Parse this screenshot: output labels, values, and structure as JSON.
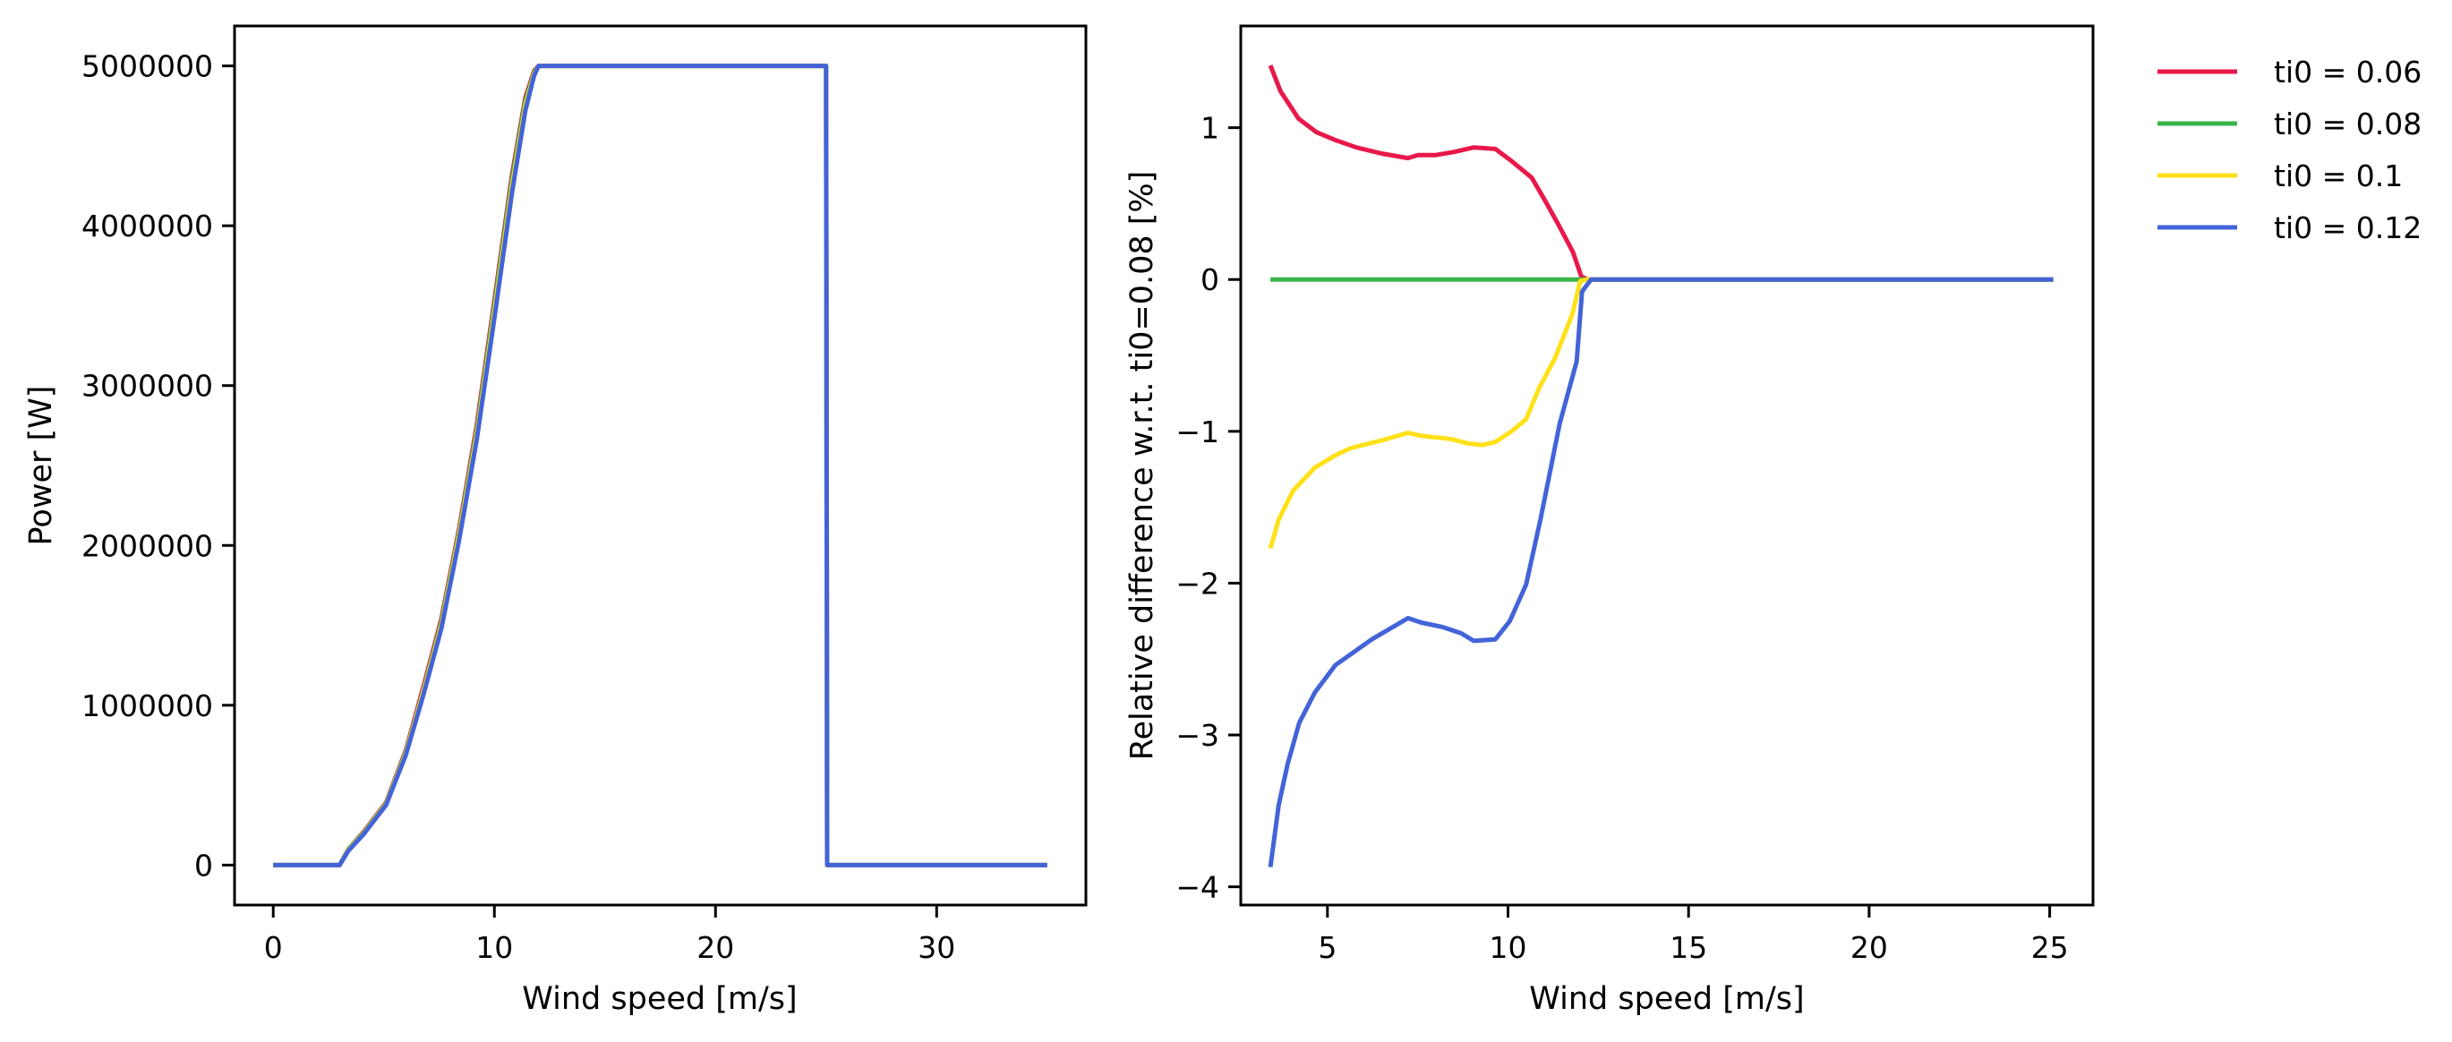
{
  "chart_data": [
    {
      "type": "line",
      "title": "",
      "xlabel": "Wind speed [m/s]",
      "ylabel": "Power [W]",
      "xlim": [
        -1.75,
        36.75
      ],
      "ylim": [
        -250000,
        5250000
      ],
      "xticks": [
        0,
        10,
        20,
        30
      ],
      "xtick_labels": [
        "0",
        "10",
        "20",
        "30"
      ],
      "yticks": [
        0,
        1000000,
        2000000,
        3000000,
        4000000,
        5000000
      ],
      "ytick_labels": [
        "0",
        "1000000",
        "2000000",
        "3000000",
        "4000000",
        "5000000"
      ],
      "grid": false,
      "series": [
        {
          "name": "ti0 = 0.06",
          "color": "#e8194a",
          "x": [
            0,
            3,
            3.4,
            4.1,
            5.1,
            6.0,
            6.8,
            7.6,
            8.4,
            9.2,
            10.0,
            10.8,
            11.4,
            11.8,
            12.0,
            25,
            25.05,
            25.3,
            35
          ],
          "y": [
            0,
            0,
            100000,
            210000,
            390000,
            720000,
            1120000,
            1540000,
            2100000,
            2750000,
            3530000,
            4320000,
            4800000,
            4970000,
            5000000,
            5000000,
            0,
            0,
            0
          ]
        },
        {
          "name": "ti0 = 0.08",
          "color": "#3ab54a",
          "x": [
            0,
            3,
            3.4,
            4.1,
            5.1,
            6.0,
            6.8,
            7.6,
            8.4,
            9.2,
            10.0,
            10.8,
            11.4,
            11.8,
            12.0,
            25,
            25.05,
            25.3,
            35
          ],
          "y": [
            0,
            0,
            100000,
            205000,
            385000,
            710000,
            1100000,
            1520000,
            2080000,
            2720000,
            3500000,
            4290000,
            4780000,
            4960000,
            5000000,
            5000000,
            0,
            0,
            0
          ]
        },
        {
          "name": "ti0 = 0.1",
          "color": "#ffe119",
          "x": [
            0,
            3,
            3.4,
            4.1,
            5.1,
            6.0,
            6.8,
            7.6,
            8.4,
            9.2,
            10.0,
            10.8,
            11.4,
            11.8,
            12.0,
            25,
            25.05,
            25.3,
            35
          ],
          "y": [
            0,
            0,
            95000,
            200000,
            380000,
            700000,
            1090000,
            1500000,
            2060000,
            2690000,
            3460000,
            4250000,
            4750000,
            4950000,
            5000000,
            5000000,
            0,
            0,
            0
          ]
        },
        {
          "name": "ti0 = 0.12",
          "color": "#4363d8",
          "x": [
            0,
            3,
            3.4,
            4.1,
            5.1,
            6.0,
            6.8,
            7.6,
            8.4,
            9.2,
            10.0,
            10.8,
            11.4,
            11.8,
            12.0,
            25,
            25.05,
            25.3,
            35
          ],
          "y": [
            0,
            0,
            90000,
            195000,
            375000,
            690000,
            1070000,
            1480000,
            2030000,
            2660000,
            3420000,
            4210000,
            4720000,
            4940000,
            5000000,
            5000000,
            0,
            0,
            0
          ]
        }
      ]
    },
    {
      "type": "line",
      "title": "",
      "xlabel": "Wind speed [m/s]",
      "ylabel": "Relative difference w.r.t. ti0=0.08 [%]",
      "xlim": [
        2.6,
        26.2
      ],
      "ylim": [
        -4.12,
        1.67
      ],
      "xticks": [
        5,
        10,
        15,
        20,
        25
      ],
      "xtick_labels": [
        "5",
        "10",
        "15",
        "20",
        "25"
      ],
      "yticks": [
        -4,
        -3,
        -2,
        -1,
        0,
        1
      ],
      "ytick_labels": [
        "−4",
        "−3",
        "−2",
        "−1",
        "0",
        "1"
      ],
      "grid": false,
      "legend": {
        "placement": "outside-top-right"
      },
      "series": [
        {
          "name": "ti0 = 0.06",
          "color": "#e8194a",
          "x": [
            3.42,
            3.7,
            4.2,
            4.7,
            5.2,
            5.8,
            6.5,
            7.23,
            7.5,
            8.0,
            8.5,
            9.05,
            9.65,
            10.1,
            10.66,
            10.98,
            11.4,
            11.8,
            12.03,
            12.2,
            25.1
          ],
          "y": [
            1.41,
            1.24,
            1.06,
            0.97,
            0.92,
            0.87,
            0.83,
            0.8,
            0.82,
            0.82,
            0.84,
            0.87,
            0.86,
            0.78,
            0.67,
            0.54,
            0.36,
            0.18,
            0.02,
            0,
            0
          ]
        },
        {
          "name": "ti0 = 0.08",
          "color": "#3ab54a",
          "x": [
            3.42,
            25.1
          ],
          "y": [
            0,
            0
          ]
        },
        {
          "name": "ti0 = 0.1",
          "color": "#ffe119",
          "x": [
            3.42,
            3.65,
            4.05,
            4.65,
            5.2,
            5.65,
            6.5,
            7.23,
            7.6,
            8.4,
            8.9,
            9.3,
            9.65,
            10.1,
            10.5,
            10.85,
            11.3,
            11.78,
            12.0,
            12.2,
            25.1
          ],
          "y": [
            -1.77,
            -1.58,
            -1.39,
            -1.24,
            -1.16,
            -1.11,
            -1.06,
            -1.01,
            -1.03,
            -1.05,
            -1.08,
            -1.09,
            -1.07,
            -1.0,
            -0.92,
            -0.72,
            -0.52,
            -0.23,
            -0.01,
            0,
            0
          ]
        },
        {
          "name": "ti0 = 0.12",
          "color": "#4363d8",
          "x": [
            3.42,
            3.65,
            3.9,
            4.22,
            4.65,
            5.22,
            6.23,
            7.23,
            7.6,
            8.2,
            8.7,
            9.05,
            9.65,
            10.05,
            10.5,
            10.9,
            11.43,
            11.9,
            12.05,
            12.3,
            25.1
          ],
          "y": [
            -3.87,
            -3.46,
            -3.19,
            -2.92,
            -2.72,
            -2.54,
            -2.37,
            -2.23,
            -2.26,
            -2.29,
            -2.33,
            -2.38,
            -2.37,
            -2.25,
            -2.01,
            -1.58,
            -0.95,
            -0.54,
            -0.08,
            0,
            0
          ]
        }
      ]
    }
  ]
}
